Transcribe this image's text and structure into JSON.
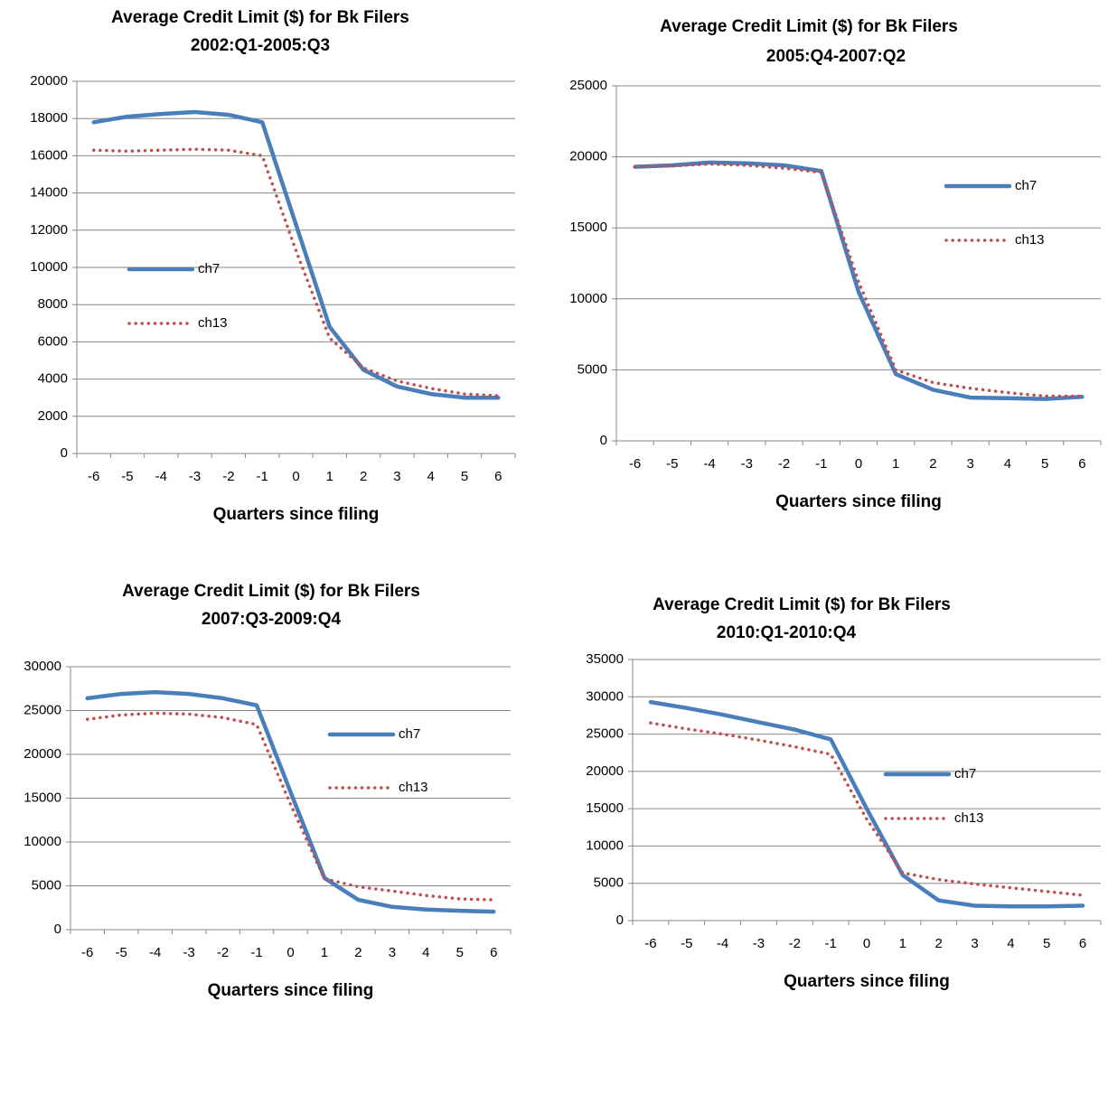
{
  "chart_data": [
    {
      "type": "line",
      "title": "Average Credit Limit ($) for Bk Filers",
      "subtitle": "2002:Q1-2005:Q3",
      "xlabel": "Quarters since filing",
      "categories": [
        "-6",
        "-5",
        "-4",
        "-3",
        "-2",
        "-1",
        "0",
        "1",
        "2",
        "3",
        "4",
        "5",
        "6"
      ],
      "ylim": [
        0,
        20000
      ],
      "yticks": [
        0,
        2000,
        4000,
        6000,
        8000,
        10000,
        12000,
        14000,
        16000,
        18000,
        20000
      ],
      "grid": true,
      "legend": "left",
      "series": [
        {
          "name": "ch7",
          "color": "#4a7ebb",
          "style": "solid",
          "values": [
            17800,
            18100,
            18250,
            18350,
            18200,
            17800,
            12300,
            6800,
            4500,
            3600,
            3200,
            3000,
            3000
          ]
        },
        {
          "name": "ch13",
          "color": "#c0504d",
          "style": "dotted",
          "values": [
            16300,
            16250,
            16300,
            16350,
            16300,
            16000,
            10900,
            6200,
            4600,
            3900,
            3500,
            3200,
            3100
          ]
        }
      ]
    },
    {
      "type": "line",
      "title": "Average Credit Limit ($) for Bk Filers",
      "subtitle": "2005:Q4-2007:Q2",
      "xlabel": "Quarters since filing",
      "categories": [
        "-6",
        "-5",
        "-4",
        "-3",
        "-2",
        "-1",
        "0",
        "1",
        "2",
        "3",
        "4",
        "5",
        "6"
      ],
      "ylim": [
        0,
        25000
      ],
      "yticks": [
        0,
        5000,
        10000,
        15000,
        20000,
        25000
      ],
      "grid": true,
      "legend": "right",
      "series": [
        {
          "name": "ch7",
          "color": "#4a7ebb",
          "style": "solid",
          "values": [
            19300,
            19400,
            19600,
            19550,
            19400,
            19000,
            10500,
            4700,
            3600,
            3050,
            3000,
            2950,
            3100
          ]
        },
        {
          "name": "ch13",
          "color": "#c0504d",
          "style": "dotted",
          "values": [
            19300,
            19350,
            19500,
            19400,
            19200,
            18900,
            11200,
            5000,
            4100,
            3700,
            3400,
            3150,
            3150
          ]
        }
      ]
    },
    {
      "type": "line",
      "title": "Average Credit Limit ($) for Bk Filers",
      "subtitle": "2007:Q3-2009:Q4",
      "xlabel": "Quarters since filing",
      "categories": [
        "-6",
        "-5",
        "-4",
        "-3",
        "-2",
        "-1",
        "0",
        "1",
        "2",
        "3",
        "4",
        "5",
        "6"
      ],
      "ylim": [
        0,
        30000
      ],
      "yticks": [
        0,
        5000,
        10000,
        15000,
        20000,
        25000,
        30000
      ],
      "grid": true,
      "legend": "right",
      "series": [
        {
          "name": "ch7",
          "color": "#4a7ebb",
          "style": "solid",
          "values": [
            26400,
            26900,
            27100,
            26900,
            26400,
            25600,
            15700,
            5900,
            3400,
            2600,
            2300,
            2150,
            2050
          ]
        },
        {
          "name": "ch13",
          "color": "#c0504d",
          "style": "dotted",
          "values": [
            24000,
            24500,
            24700,
            24600,
            24200,
            23400,
            14300,
            5800,
            4900,
            4400,
            3900,
            3500,
            3400
          ]
        }
      ]
    },
    {
      "type": "line",
      "title": "Average Credit Limit ($) for Bk Filers",
      "subtitle": "2010:Q1-2010:Q4",
      "xlabel": "Quarters since filing",
      "categories": [
        "-6",
        "-5",
        "-4",
        "-3",
        "-2",
        "-1",
        "0",
        "1",
        "2",
        "3",
        "4",
        "5",
        "6"
      ],
      "ylim": [
        0,
        35000
      ],
      "yticks": [
        0,
        5000,
        10000,
        15000,
        20000,
        25000,
        30000,
        35000
      ],
      "grid": true,
      "legend": "right",
      "series": [
        {
          "name": "ch7",
          "color": "#4a7ebb",
          "style": "solid",
          "values": [
            29300,
            28500,
            27600,
            26600,
            25600,
            24300,
            15000,
            6100,
            2700,
            2000,
            1900,
            1900,
            2000
          ]
        },
        {
          "name": "ch13",
          "color": "#c0504d",
          "style": "dotted",
          "values": [
            26500,
            25700,
            25000,
            24200,
            23300,
            22300,
            13600,
            6400,
            5500,
            4900,
            4400,
            3900,
            3400
          ]
        }
      ]
    }
  ]
}
